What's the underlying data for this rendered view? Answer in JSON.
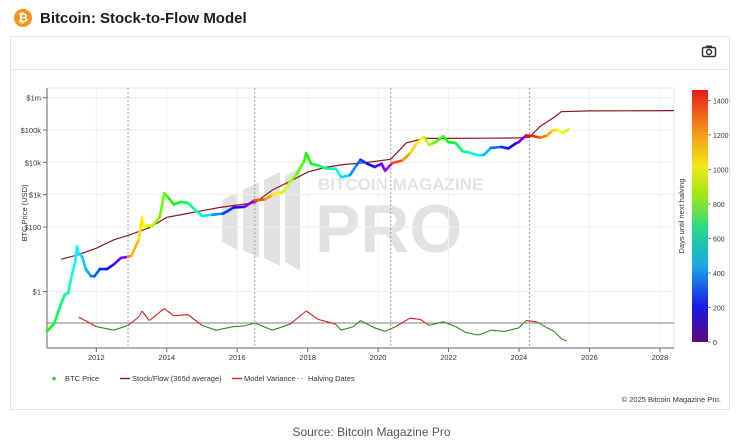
{
  "header": {
    "icon_glyph": "₿",
    "title": "Bitcoin: Stock-to-Flow Model"
  },
  "toolbar": {
    "camera_icon": "camera-icon"
  },
  "watermark": {
    "line1": "BITCOIN MAGAZINE",
    "line2": "PRO"
  },
  "copyright": "© 2025 Bitcoin Magazine Pro.",
  "source": "Source: Bitcoin Magazine Pro",
  "colors": {
    "stock_to_flow": "#8b1a1a",
    "model_variance_above": "#d62020",
    "model_variance_below": "#2e8b23",
    "halving": "#999999",
    "btc_dot": "#2ecc40"
  },
  "chart_data": {
    "type": "line",
    "ylabel": "BTC Price (USD)",
    "yscale": "log",
    "y_ticks": [
      {
        "value": 1,
        "label": "$1"
      },
      {
        "value": 100,
        "label": "$100"
      },
      {
        "value": 1000,
        "label": "$1k"
      },
      {
        "value": 10000,
        "label": "$10k"
      },
      {
        "value": 100000,
        "label": "$100k"
      },
      {
        "value": 1000000,
        "label": "$1m"
      }
    ],
    "x_ticks": [
      "2012",
      "2014",
      "2016",
      "2018",
      "2020",
      "2022",
      "2024",
      "2026",
      "2028"
    ],
    "xlim": [
      2010.6,
      2028.4
    ],
    "ylim": [
      0.018,
      2000000
    ],
    "halving_dates": [
      2012.9,
      2016.5,
      2020.36,
      2024.3
    ],
    "colorbar": {
      "label": "Days until next halving",
      "ticks": [
        0,
        200,
        400,
        600,
        800,
        1000,
        1200,
        1400
      ],
      "range": [
        0,
        1460
      ]
    },
    "legend": [
      "BTC Price",
      "Stock/Flow (365d average)",
      "Model Variance",
      "Halving Dates"
    ],
    "series": [
      {
        "name": "BTC Price",
        "points": [
          [
            2010.6,
            0.06
          ],
          [
            2010.8,
            0.1
          ],
          [
            2010.95,
            0.3
          ],
          [
            2011.1,
            0.8
          ],
          [
            2011.2,
            0.9
          ],
          [
            2011.3,
            3
          ],
          [
            2011.4,
            8
          ],
          [
            2011.45,
            25
          ],
          [
            2011.5,
            15
          ],
          [
            2011.6,
            12
          ],
          [
            2011.7,
            5
          ],
          [
            2011.85,
            3
          ],
          [
            2011.95,
            3
          ],
          [
            2012.1,
            5
          ],
          [
            2012.3,
            5
          ],
          [
            2012.5,
            7
          ],
          [
            2012.7,
            11
          ],
          [
            2012.9,
            12
          ],
          [
            2013.0,
            13
          ],
          [
            2013.2,
            40
          ],
          [
            2013.3,
            200
          ],
          [
            2013.35,
            100
          ],
          [
            2013.45,
            110
          ],
          [
            2013.6,
            110
          ],
          [
            2013.8,
            200
          ],
          [
            2013.93,
            1100
          ],
          [
            2014.05,
            800
          ],
          [
            2014.2,
            500
          ],
          [
            2014.4,
            600
          ],
          [
            2014.6,
            550
          ],
          [
            2014.8,
            350
          ],
          [
            2015.0,
            220
          ],
          [
            2015.3,
            240
          ],
          [
            2015.6,
            260
          ],
          [
            2015.9,
            400
          ],
          [
            2016.2,
            420
          ],
          [
            2016.5,
            670
          ],
          [
            2016.8,
            720
          ],
          [
            2017.0,
            1000
          ],
          [
            2017.3,
            1200
          ],
          [
            2017.5,
            2500
          ],
          [
            2017.7,
            4500
          ],
          [
            2017.9,
            11000
          ],
          [
            2017.96,
            19000
          ],
          [
            2018.1,
            9000
          ],
          [
            2018.3,
            8000
          ],
          [
            2018.5,
            6500
          ],
          [
            2018.8,
            6300
          ],
          [
            2018.95,
            3500
          ],
          [
            2019.2,
            4000
          ],
          [
            2019.4,
            8500
          ],
          [
            2019.5,
            12000
          ],
          [
            2019.7,
            9000
          ],
          [
            2019.9,
            7200
          ],
          [
            2020.1,
            9000
          ],
          [
            2020.2,
            5500
          ],
          [
            2020.4,
            9500
          ],
          [
            2020.7,
            11500
          ],
          [
            2020.9,
            19000
          ],
          [
            2021.1,
            40000
          ],
          [
            2021.3,
            60000
          ],
          [
            2021.45,
            35000
          ],
          [
            2021.6,
            40000
          ],
          [
            2021.85,
            64000
          ],
          [
            2022.0,
            42000
          ],
          [
            2022.2,
            40000
          ],
          [
            2022.4,
            22000
          ],
          [
            2022.6,
            20000
          ],
          [
            2022.85,
            16500
          ],
          [
            2023.0,
            17000
          ],
          [
            2023.2,
            28000
          ],
          [
            2023.5,
            30000
          ],
          [
            2023.7,
            27000
          ],
          [
            2023.9,
            38000
          ],
          [
            2024.0,
            43000
          ],
          [
            2024.2,
            68000
          ],
          [
            2024.4,
            65000
          ],
          [
            2024.6,
            58000
          ],
          [
            2024.8,
            68000
          ],
          [
            2024.95,
            98000
          ],
          [
            2025.1,
            100000
          ],
          [
            2025.25,
            82000
          ],
          [
            2025.4,
            104000
          ]
        ]
      },
      {
        "name": "Stock/Flow (365d average)",
        "points": [
          [
            2011.0,
            10
          ],
          [
            2011.5,
            14
          ],
          [
            2012.0,
            22
          ],
          [
            2012.5,
            40
          ],
          [
            2012.9,
            55
          ],
          [
            2013.5,
            95
          ],
          [
            2014.0,
            200
          ],
          [
            2014.5,
            250
          ],
          [
            2015.0,
            320
          ],
          [
            2015.5,
            400
          ],
          [
            2016.0,
            480
          ],
          [
            2016.5,
            560
          ],
          [
            2017.0,
            1400
          ],
          [
            2017.5,
            2600
          ],
          [
            2018.0,
            5000
          ],
          [
            2018.5,
            7000
          ],
          [
            2019.0,
            8500
          ],
          [
            2019.5,
            9500
          ],
          [
            2020.0,
            11000
          ],
          [
            2020.36,
            12500
          ],
          [
            2020.8,
            40000
          ],
          [
            2021.3,
            55000
          ],
          [
            2022.0,
            55000
          ],
          [
            2023.0,
            56000
          ],
          [
            2024.0,
            57000
          ],
          [
            2024.3,
            60000
          ],
          [
            2024.6,
            130000
          ],
          [
            2025.0,
            250000
          ],
          [
            2025.2,
            370000
          ],
          [
            2026.0,
            390000
          ],
          [
            2027.0,
            395000
          ],
          [
            2028.4,
            400000
          ]
        ]
      },
      {
        "name": "Model Variance",
        "points": [
          [
            2011.5,
            0.5
          ],
          [
            2012.0,
            -0.3
          ],
          [
            2012.5,
            -0.6
          ],
          [
            2012.9,
            -0.2
          ],
          [
            2013.2,
            0.5
          ],
          [
            2013.3,
            1.0
          ],
          [
            2013.5,
            0.2
          ],
          [
            2013.93,
            1.2
          ],
          [
            2014.2,
            0.6
          ],
          [
            2014.6,
            0.7
          ],
          [
            2015.0,
            -0.2
          ],
          [
            2015.4,
            -0.6
          ],
          [
            2015.9,
            -0.3
          ],
          [
            2016.2,
            -0.25
          ],
          [
            2016.5,
            0.0
          ],
          [
            2017.0,
            -0.6
          ],
          [
            2017.5,
            -0.1
          ],
          [
            2017.96,
            1.0
          ],
          [
            2018.3,
            0.3
          ],
          [
            2018.8,
            -0.1
          ],
          [
            2018.95,
            -0.6
          ],
          [
            2019.3,
            -0.3
          ],
          [
            2019.5,
            0.2
          ],
          [
            2019.9,
            -0.4
          ],
          [
            2020.2,
            -0.7
          ],
          [
            2020.5,
            -0.3
          ],
          [
            2020.9,
            0.4
          ],
          [
            2021.2,
            0.3
          ],
          [
            2021.45,
            -0.2
          ],
          [
            2021.85,
            0.1
          ],
          [
            2022.2,
            -0.3
          ],
          [
            2022.5,
            -0.8
          ],
          [
            2022.85,
            -1.0
          ],
          [
            2023.2,
            -0.6
          ],
          [
            2023.6,
            -0.7
          ],
          [
            2024.0,
            -0.4
          ],
          [
            2024.2,
            0.2
          ],
          [
            2024.5,
            0.1
          ],
          [
            2024.8,
            -0.4
          ],
          [
            2025.0,
            -0.7
          ],
          [
            2025.2,
            -1.3
          ],
          [
            2025.35,
            -1.5
          ]
        ]
      }
    ]
  }
}
